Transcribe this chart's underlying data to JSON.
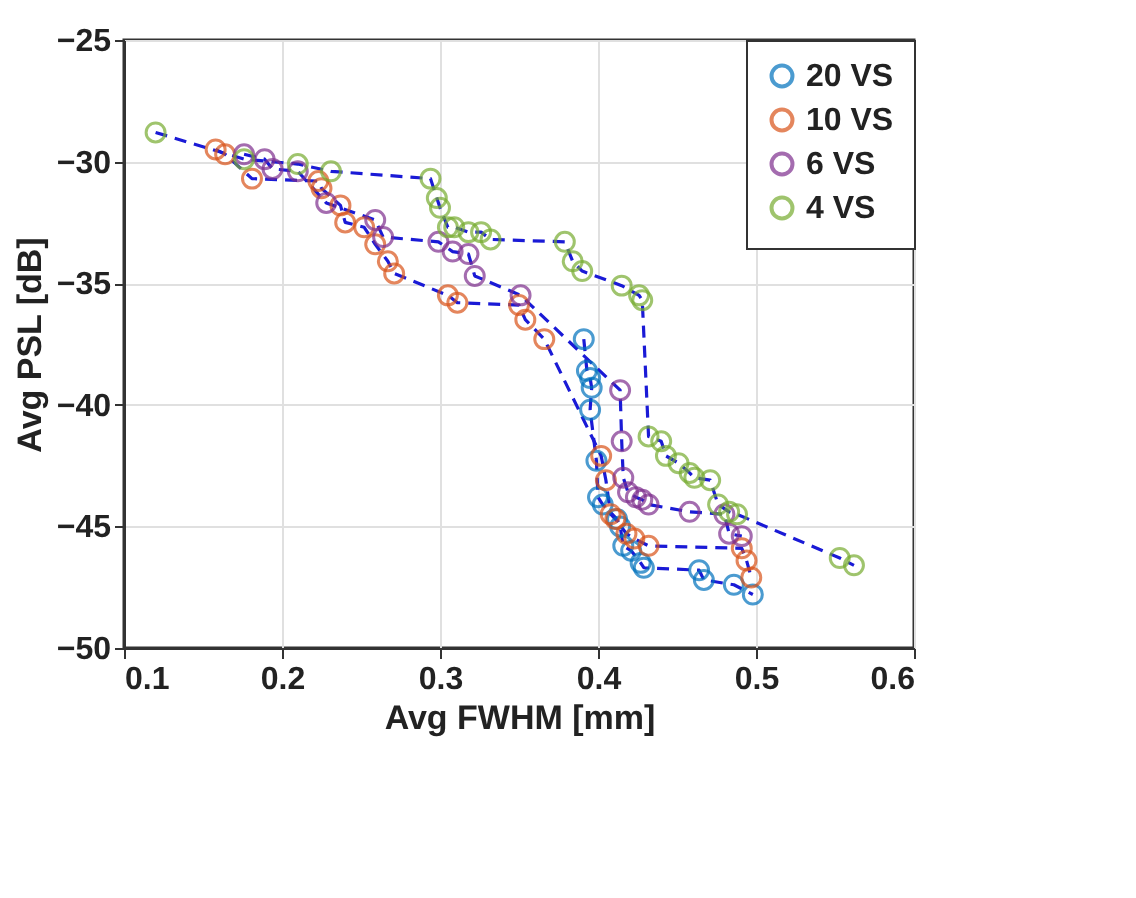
{
  "chart_data": {
    "type": "line",
    "xlabel": "Avg FWHM [mm]",
    "ylabel": "Avg PSL [dB]",
    "xlim": [
      0.1,
      0.6
    ],
    "ylim": [
      -50,
      -25
    ],
    "xticks": [
      0.1,
      0.2,
      0.3,
      0.4,
      0.5,
      0.6
    ],
    "yticks": [
      -50,
      -45,
      -40,
      -35,
      -30,
      -25
    ],
    "grid": true,
    "legend": "top right",
    "marker": "circle",
    "line_style": "dashed",
    "series": [
      {
        "name": "20 VS",
        "color": "#0072bd",
        "x": [
          0.391,
          0.393,
          0.395,
          0.396,
          0.395,
          0.399,
          0.4,
          0.403,
          0.412,
          0.414,
          0.416,
          0.421,
          0.427,
          0.429,
          0.464,
          0.467,
          0.486,
          0.498
        ],
        "values": [
          -37.3,
          -38.6,
          -38.9,
          -39.3,
          -40.2,
          -42.3,
          -43.8,
          -44.1,
          -44.7,
          -45.0,
          -45.8,
          -46.0,
          -46.5,
          -46.7,
          -46.8,
          -47.2,
          -47.4,
          -47.8
        ]
      },
      {
        "name": "10 VS",
        "color": "#d95319",
        "x": [
          0.158,
          0.164,
          0.181,
          0.223,
          0.225,
          0.237,
          0.24,
          0.252,
          0.259,
          0.267,
          0.271,
          0.305,
          0.311,
          0.35,
          0.354,
          0.366,
          0.402,
          0.405,
          0.408,
          0.411,
          0.418,
          0.423,
          0.432,
          0.491,
          0.494,
          0.497
        ],
        "values": [
          -29.5,
          -29.7,
          -30.7,
          -30.8,
          -31.1,
          -31.8,
          -32.5,
          -32.7,
          -33.4,
          -34.1,
          -34.6,
          -35.5,
          -35.8,
          -35.9,
          -36.5,
          -37.3,
          -42.1,
          -43.1,
          -44.5,
          -44.7,
          -45.3,
          -45.5,
          -45.8,
          -45.9,
          -46.4,
          -47.1
        ]
      },
      {
        "name": "6 VS",
        "color": "#7e2f8e",
        "x": [
          0.176,
          0.189,
          0.194,
          0.21,
          0.228,
          0.259,
          0.264,
          0.299,
          0.308,
          0.318,
          0.322,
          0.351,
          0.414,
          0.415,
          0.416,
          0.419,
          0.424,
          0.428,
          0.432,
          0.458,
          0.48,
          0.483,
          0.491
        ],
        "values": [
          -29.7,
          -29.9,
          -30.3,
          -30.4,
          -31.7,
          -32.4,
          -33.1,
          -33.3,
          -33.7,
          -33.8,
          -34.7,
          -35.5,
          -39.4,
          -41.5,
          -43.0,
          -43.6,
          -43.8,
          -43.9,
          -44.1,
          -44.4,
          -44.5,
          -45.3,
          -45.4
        ]
      },
      {
        "name": "4 VS",
        "color": "#77ac30",
        "x": [
          0.12,
          0.176,
          0.21,
          0.231,
          0.294,
          0.298,
          0.3,
          0.305,
          0.309,
          0.318,
          0.326,
          0.332,
          0.379,
          0.384,
          0.39,
          0.415,
          0.426,
          0.428,
          0.432,
          0.44,
          0.443,
          0.451,
          0.458,
          0.461,
          0.471,
          0.476,
          0.483,
          0.488,
          0.553,
          0.562
        ],
        "values": [
          -28.8,
          -29.9,
          -30.1,
          -30.4,
          -30.7,
          -31.5,
          -31.9,
          -32.7,
          -32.7,
          -32.9,
          -32.9,
          -33.2,
          -33.3,
          -34.1,
          -34.5,
          -35.1,
          -35.5,
          -35.7,
          -41.3,
          -41.5,
          -42.1,
          -42.4,
          -42.8,
          -43.0,
          -43.1,
          -44.1,
          -44.4,
          -44.5,
          -46.3,
          -46.6
        ]
      }
    ]
  }
}
